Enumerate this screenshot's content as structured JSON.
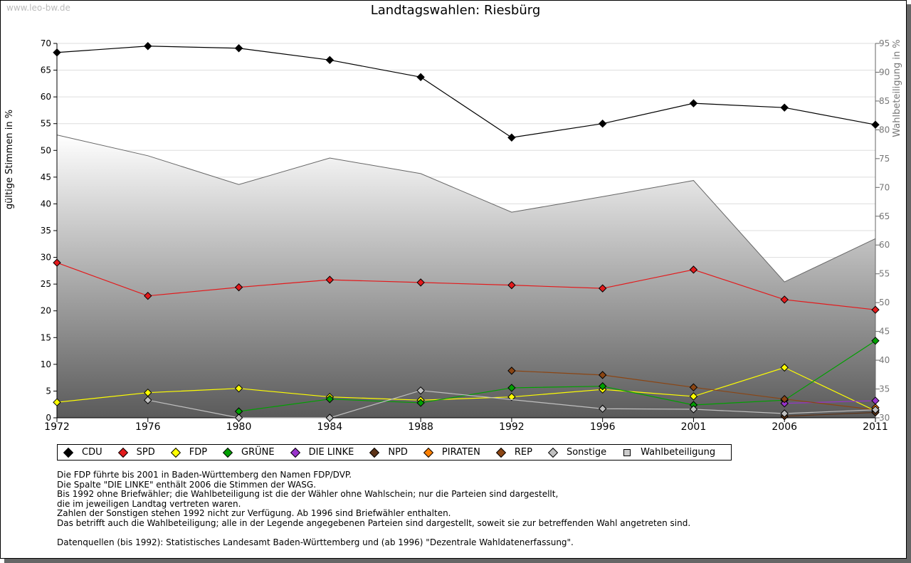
{
  "watermark": "www.leo-bw.de",
  "chart_data": {
    "type": "line",
    "title": "Landtagswahlen: Riesbürg",
    "ylabel": "gültige Stimmen in %",
    "y2label": "Wahlbeteiligung in %",
    "ylim": [
      0,
      70
    ],
    "y2lim": [
      30,
      95
    ],
    "yticks": [
      "0",
      "5",
      "10",
      "15",
      "20",
      "25",
      "30",
      "35",
      "40",
      "45",
      "50",
      "55",
      "60",
      "65",
      "70"
    ],
    "y2ticks": [
      "30",
      "35",
      "40",
      "45",
      "50",
      "55",
      "60",
      "65",
      "70",
      "75",
      "80",
      "85",
      "90",
      "95"
    ],
    "x": [
      "1972",
      "1976",
      "1980",
      "1984",
      "1988",
      "1992",
      "1996",
      "2001",
      "2006",
      "2011"
    ],
    "series": [
      {
        "name": "CDU",
        "color": "#000000",
        "values": [
          68.3,
          69.5,
          69.1,
          66.9,
          63.7,
          52.4,
          55.0,
          58.8,
          58.0,
          54.8
        ]
      },
      {
        "name": "SPD",
        "color": "#e31a1c",
        "values": [
          29.0,
          22.8,
          24.4,
          25.8,
          25.3,
          24.8,
          24.2,
          27.7,
          22.1,
          20.2
        ]
      },
      {
        "name": "FDP",
        "color": "#ffff00",
        "values": [
          2.9,
          4.7,
          5.5,
          3.9,
          3.3,
          3.9,
          5.3,
          4.0,
          9.4,
          1.3
        ]
      },
      {
        "name": "GRÜNE",
        "color": "#00a000",
        "values": [
          null,
          null,
          1.2,
          3.5,
          2.8,
          5.6,
          5.9,
          2.4,
          3.3,
          14.4
        ]
      },
      {
        "name": "DIE LINKE",
        "color": "#9933cc",
        "values": [
          null,
          null,
          null,
          null,
          null,
          null,
          null,
          null,
          2.7,
          3.2
        ]
      },
      {
        "name": "NPD",
        "color": "#5c3317",
        "values": [
          null,
          null,
          null,
          null,
          null,
          null,
          null,
          null,
          0.3,
          1.0
        ]
      },
      {
        "name": "PIRATEN",
        "color": "#ff8000",
        "values": [
          null,
          null,
          null,
          null,
          null,
          null,
          null,
          null,
          null,
          1.9
        ]
      },
      {
        "name": "REP",
        "color": "#8b4513",
        "values": [
          null,
          null,
          null,
          null,
          null,
          8.8,
          8.0,
          5.7,
          3.5,
          1.5
        ]
      },
      {
        "name": "Sonstige",
        "color": "#c0c0c0",
        "values": [
          null,
          3.3,
          0.0,
          0.0,
          5.1,
          null,
          1.7,
          1.6,
          0.8,
          1.5
        ]
      }
    ],
    "turnout": {
      "name": "Wahlbeteiligung",
      "color": "#c8c8c8",
      "values": [
        79.1,
        75.5,
        70.5,
        75.1,
        72.4,
        65.7,
        68.4,
        71.2,
        53.6,
        61.1
      ]
    },
    "legend": "bottom"
  },
  "notes": [
    "Die FDP führte bis 2001 in Baden-Württemberg den Namen FDP/DVP.",
    "Die Spalte \"DIE LINKE\" enthält 2006 die Stimmen der WASG.",
    "Bis 1992 ohne Briefwähler; die Wahlbeteiligung ist die der Wähler ohne Wahlschein; nur die Parteien sind dargestellt,",
    "die im jeweiligen Landtag vertreten waren.",
    "Zahlen der Sonstigen stehen 1992 nicht zur Verfügung. Ab 1996 sind Briefwähler enthalten.",
    "Das betrifft auch die Wahlbeteiligung; alle in der Legende angegebenen Parteien sind dargestellt, soweit sie zur betreffenden Wahl angetreten sind.",
    "",
    "Datenquellen (bis 1992): Statistisches Landesamt Baden-Württemberg und (ab 1996) \"Dezentrale Wahldatenerfassung\"."
  ]
}
